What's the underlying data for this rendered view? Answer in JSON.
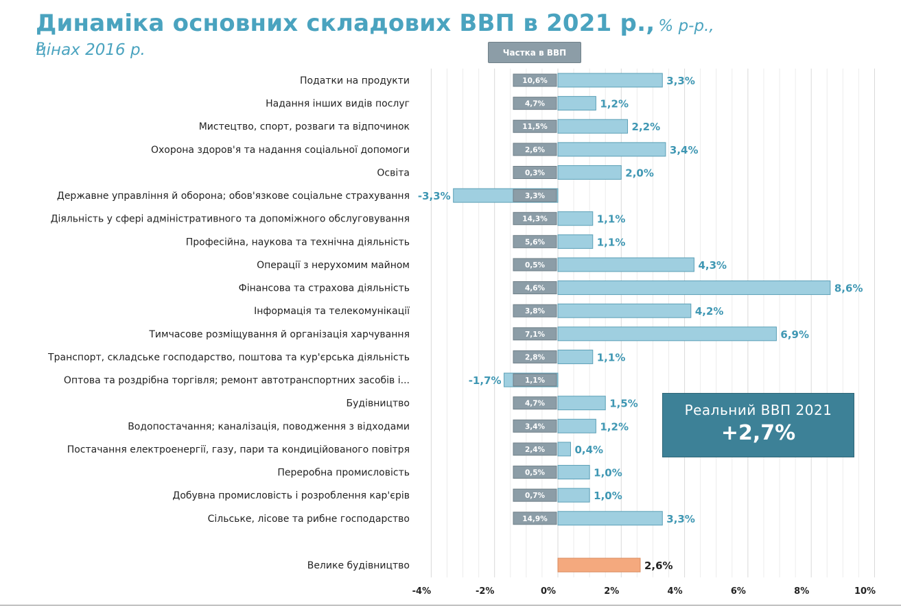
{
  "title": {
    "main": "Динаміка основних складових ВВП в 2021 р.,",
    "sub_1": "% р-р., в",
    "sub_2": "цінах 2016 р."
  },
  "share_header": "Частка в ВВП",
  "real_gdp": {
    "label": "Реальний ВВП 2021",
    "value": "+2,7%"
  },
  "colors": {
    "bar": "#9fcfe0",
    "bar_border": "#5a9fb6",
    "highlight": "#f4a97e",
    "share_box": "#8c9da7",
    "title": "#4aa3bf",
    "value_text": "#3f97b3"
  },
  "chart_data": {
    "type": "bar",
    "orientation": "horizontal",
    "xlim": [
      -4,
      10
    ],
    "xticks": [
      "-4%",
      "-2%",
      "0%",
      "2%",
      "4%",
      "6%",
      "8%",
      "10%"
    ],
    "xtick_values": [
      -4,
      -2,
      0,
      2,
      4,
      6,
      8,
      10
    ],
    "grid": true,
    "categories": [
      "Податки на продукти",
      "Надання інших видів послуг",
      "Мистецтво, спорт, розваги та відпочинок",
      "Охорона здоров'я та надання соціальної допомоги",
      "Освіта",
      "Державне управління й оборона; обов'язкове соціальне страхування",
      "Діяльність у сфері адміністративного та допоміжного обслуговування",
      "Професійна, наукова та технічна діяльність",
      "Операції з нерухомим майном",
      "Фінансова та страхова діяльність",
      "Інформація та телекомунікації",
      "Тимчасове розміщування й організація харчування",
      "Транспорт, складське господарство, поштова та кур'єрська діяльність",
      "Оптова та роздрібна торгівля; ремонт автотранспортних засобів і...",
      "Будівництво",
      "Водопостачання; каналізація, поводження з відходами",
      "Постачання електроенергії, газу, пари та кондиційованого повітря",
      "Переробна промисловість",
      "Добувна промисловість і розроблення кар'єрів",
      "Сільське, лісове та рибне господарство"
    ],
    "values": [
      3.3,
      1.2,
      2.2,
      3.4,
      2.0,
      -3.3,
      1.1,
      1.1,
      4.3,
      8.6,
      4.2,
      6.9,
      1.1,
      -1.7,
      1.5,
      1.2,
      0.4,
      1.0,
      1.0,
      3.3
    ],
    "value_labels": [
      "3,3%",
      "1,2%",
      "2,2%",
      "3,4%",
      "2,0%",
      "-3,3%",
      "1,1%",
      "1,1%",
      "4,3%",
      "8,6%",
      "4,2%",
      "6,9%",
      "1,1%",
      "-1,7%",
      "1,5%",
      "1,2%",
      "0,4%",
      "1,0%",
      "1,0%",
      "3,3%"
    ],
    "shares": [
      "10,6%",
      "4,7%",
      "11,5%",
      "2,6%",
      "0,3%",
      "3,3%",
      "14,3%",
      "5,6%",
      "0,5%",
      "4,6%",
      "3,8%",
      "7,1%",
      "2,8%",
      "1,1%",
      "4,7%",
      "3,4%",
      "2,4%",
      "0,5%",
      "0,7%",
      "14,9%"
    ],
    "highlight": {
      "category": "Велике будівництво",
      "value": 2.6,
      "value_label": "2,6%"
    }
  }
}
